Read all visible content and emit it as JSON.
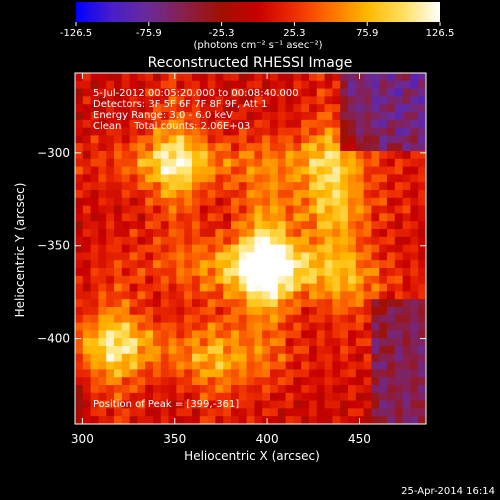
{
  "chart_data": {
    "type": "heatmap",
    "title": "Reconstructed RHESSI Image",
    "xlabel": "Heliocentric X (arcsec)",
    "ylabel": "Heliocentric Y (arcsec)",
    "xlim": [
      296,
      486
    ],
    "ylim": [
      -446,
      -257
    ],
    "x_ticks": [
      300,
      350,
      400,
      450
    ],
    "y_ticks": [
      -300,
      -350,
      -400
    ],
    "colorbar": {
      "ticks": [
        -126.5,
        -75.9,
        -25.3,
        25.3,
        75.9,
        126.5
      ],
      "tick_labels": [
        "-126.5",
        "-75.9",
        "-25.3",
        "25.3",
        "75.9",
        "126.5"
      ],
      "range": [
        -126.5,
        126.5
      ],
      "unit_label": "(photons cm⁻² s⁻¹ asec⁻²)"
    },
    "colormap_stops": [
      "#0000ff",
      "#4a1ec8",
      "#6a2a98",
      "#8a1f48",
      "#a01000",
      "#c80000",
      "#ee2d00",
      "#ff7000",
      "#ffb800",
      "#ffe060",
      "#ffffff"
    ],
    "annotations": [
      "5-Jul-2012 00:05:20.000 to 00:08:40.000",
      "Detectors: 3F 5F 6F 7F 8F 9F, Att 1",
      "Energy Range: 3.0 - 6.0 keV",
      "Clean    Total counts: 2.06E+03"
    ],
    "peak_label": "Position of Peak = [399,-361]",
    "peak": [
      399,
      -361
    ],
    "sources": [
      {
        "x": 399,
        "y": -361,
        "amplitude": 126.5
      },
      {
        "x": 350,
        "y": -305,
        "amplitude": 80
      },
      {
        "x": 318,
        "y": -403,
        "amplitude": 72
      },
      {
        "x": 432,
        "y": -305,
        "amplitude": 52
      },
      {
        "x": 437,
        "y": -330,
        "amplitude": 40
      },
      {
        "x": 372,
        "y": -412,
        "amplitude": 45
      },
      {
        "x": 445,
        "y": -372,
        "amplitude": 28
      }
    ],
    "footer_date": "25-Apr-2014 16:14"
  }
}
